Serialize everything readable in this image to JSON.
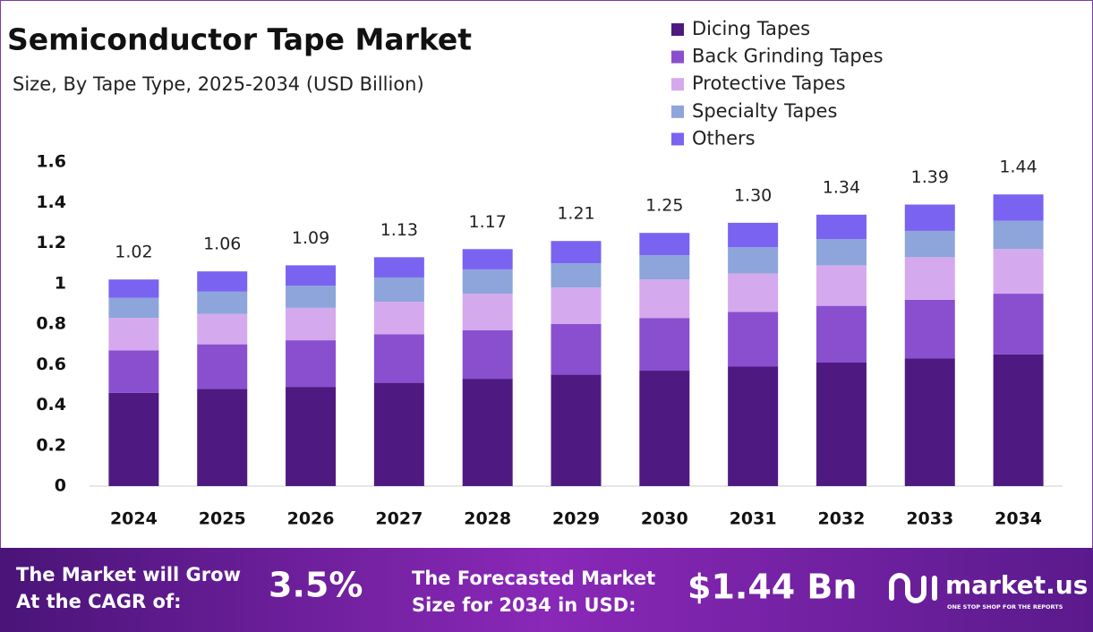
{
  "chart_data": {
    "type": "stacked_bar",
    "title": "Semiconductor Tape  Market",
    "subtitle": "Size, By Tape Type, 2025-2034 (USD Billion)",
    "categories": [
      "2024",
      "2025",
      "2026",
      "2027",
      "2028",
      "2029",
      "2030",
      "2031",
      "2032",
      "2033",
      "2034"
    ],
    "series": [
      {
        "name": "Dicing Tapes",
        "color": "#4e1a82",
        "values": [
          0.46,
          0.48,
          0.49,
          0.51,
          0.53,
          0.55,
          0.57,
          0.59,
          0.61,
          0.63,
          0.65
        ]
      },
      {
        "name": "Back Grinding Tapes",
        "color": "#8a4fcf",
        "values": [
          0.21,
          0.22,
          0.23,
          0.24,
          0.24,
          0.25,
          0.26,
          0.27,
          0.28,
          0.29,
          0.3
        ]
      },
      {
        "name": "Protective Tapes",
        "color": "#d5a9ee",
        "values": [
          0.16,
          0.15,
          0.16,
          0.16,
          0.18,
          0.18,
          0.19,
          0.19,
          0.2,
          0.21,
          0.22
        ]
      },
      {
        "name": "Specialty Tapes",
        "color": "#8ea5db",
        "values": [
          0.1,
          0.11,
          0.11,
          0.12,
          0.12,
          0.12,
          0.12,
          0.13,
          0.13,
          0.13,
          0.14
        ]
      },
      {
        "name": "Others",
        "color": "#7b63f1",
        "values": [
          0.09,
          0.1,
          0.1,
          0.1,
          0.1,
          0.11,
          0.11,
          0.12,
          0.12,
          0.13,
          0.13
        ]
      }
    ],
    "totals": [
      1.02,
      1.06,
      1.09,
      1.13,
      1.17,
      1.21,
      1.25,
      1.3,
      1.34,
      1.39,
      1.44
    ],
    "total_labels": [
      "1.02",
      "1.06",
      "1.09",
      "1.13",
      "1.17",
      "1.21",
      "1.25",
      "1.30",
      "1.34",
      "1.39",
      "1.44"
    ],
    "ylim": [
      0,
      1.6
    ],
    "yticks": [
      0,
      0.2,
      0.4,
      0.6,
      0.8,
      1,
      1.2,
      1.4,
      1.6
    ],
    "grid": false,
    "legend": "top-right"
  },
  "footer": {
    "cagr_label": [
      "The Market will Grow",
      "At the CAGR of:"
    ],
    "cagr_value": "3.5%",
    "forecast_label": [
      "The Forecasted Market",
      "Size for 2034 in USD:"
    ],
    "forecast_value": "$1.44 Bn",
    "brand": "market.us",
    "tagline": "ONE STOP SHOP FOR THE REPORTS"
  }
}
